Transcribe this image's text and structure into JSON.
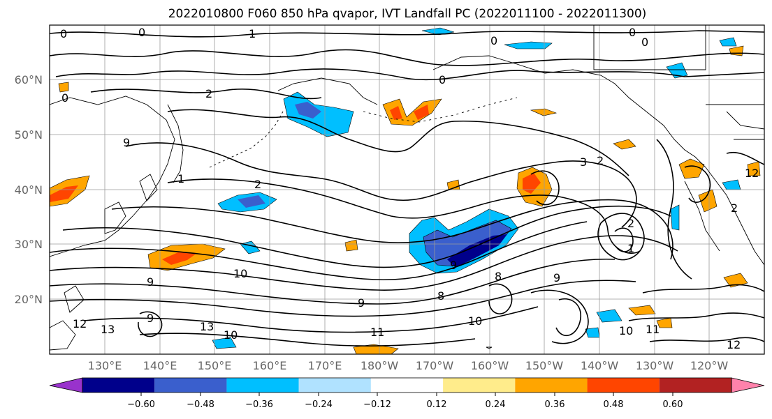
{
  "title": "2022010800 F060 850 hPa qvapor, IVT Landfall PC (2022011100 - 2022011300)",
  "lat_ticks": [
    "60°N",
    "50°N",
    "40°N",
    "30°N",
    "20°N"
  ],
  "lon_ticks": [
    "130°E",
    "140°E",
    "150°E",
    "160°E",
    "170°E",
    "180°W",
    "170°W",
    "160°W",
    "150°W",
    "140°W",
    "130°W",
    "120°W"
  ],
  "colorbar": {
    "ticks": [
      "−0.60",
      "−0.48",
      "−0.36",
      "−0.24",
      "−0.12",
      "0.12",
      "0.24",
      "0.36",
      "0.48",
      "0.60"
    ],
    "colors": [
      "#9932cc",
      "#00008b",
      "#3a5fcd",
      "#00bfff",
      "#b0e2ff",
      "#ffffff",
      "#ffec8b",
      "#ffa500",
      "#ff4500",
      "#b22222",
      "#ff82ab"
    ]
  },
  "contour_labels": [
    "0",
    "1",
    "0",
    "0",
    "0",
    "2",
    "0",
    "9",
    "1",
    "2",
    "0",
    "0",
    "3",
    "2",
    "2",
    "2",
    "1",
    "10",
    "9",
    "9",
    "13",
    "13",
    "12",
    "9",
    "10",
    "12",
    "11",
    "10",
    "10",
    "11",
    "12",
    "9",
    "8",
    "8",
    "9"
  ]
}
